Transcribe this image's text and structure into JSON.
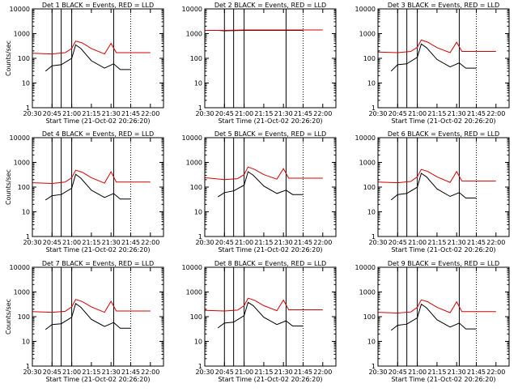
{
  "colors": {
    "events": "#000000",
    "lld": "#d40000"
  },
  "chart_data": [
    {
      "type": "line",
      "title": "Det 1   BLACK = Events, RED = LLD",
      "ylabel": "Counts/sec",
      "xlabel": "Start Time (21-Oct-02 20:26:20)",
      "x_ticks": [
        "20:30",
        "20:45",
        "21:00",
        "21:15",
        "21:30",
        "21:45",
        "22:00"
      ],
      "y_ticks": [
        "1",
        "10",
        "100",
        "1000",
        "10000"
      ],
      "ylim": [
        1,
        10000
      ],
      "y_scale": "log",
      "series": [
        {
          "name": "Events",
          "x": [
            "20:40",
            "20:45",
            "20:52",
            "21:00",
            "21:03",
            "21:07",
            "21:15",
            "21:25",
            "21:32",
            "21:37",
            "21:45"
          ],
          "values": [
            30,
            50,
            55,
            100,
            350,
            250,
            80,
            40,
            60,
            35,
            35
          ]
        },
        {
          "name": "LLD",
          "x": [
            "20:30",
            "20:45",
            "20:55",
            "21:00",
            "21:03",
            "21:08",
            "21:15",
            "21:25",
            "21:30",
            "21:34",
            "21:40",
            "22:00"
          ],
          "values": [
            160,
            150,
            170,
            250,
            500,
            420,
            250,
            150,
            400,
            170,
            170,
            170
          ]
        }
      ]
    },
    {
      "type": "line",
      "title": "Det 2   BLACK = Events, RED = LLD",
      "ylabel": "",
      "xlabel": "Start Time (21-Oct-02 20:26:20)",
      "x_ticks": [
        "20:30",
        "20:45",
        "21:00",
        "21:15",
        "21:30",
        "21:45",
        "22:00"
      ],
      "y_ticks": [
        "1",
        "10",
        "100",
        "1000",
        "10000"
      ],
      "ylim": [
        1,
        10000
      ],
      "y_scale": "log",
      "series": [
        {
          "name": "Events",
          "x": [
            "20:40",
            "20:45",
            "21:00",
            "21:15",
            "21:30",
            "21:45"
          ],
          "values": [
            1350,
            1300,
            1350,
            1350,
            1350,
            1350
          ]
        },
        {
          "name": "LLD",
          "x": [
            "20:30",
            "20:45",
            "21:00",
            "21:15",
            "21:30",
            "21:45",
            "22:00"
          ],
          "values": [
            1350,
            1350,
            1400,
            1400,
            1400,
            1400,
            1400
          ]
        }
      ]
    },
    {
      "type": "line",
      "title": "Det 3   BLACK = Events, RED = LLD",
      "ylabel": "",
      "xlabel": "Start Time (21-Oct-02 20:26:20)",
      "x_ticks": [
        "20:30",
        "20:45",
        "21:00",
        "21:15",
        "21:30",
        "21:45",
        "22:00"
      ],
      "y_ticks": [
        "1",
        "10",
        "100",
        "1000",
        "10000"
      ],
      "ylim": [
        1,
        10000
      ],
      "y_scale": "log",
      "series": [
        {
          "name": "Events",
          "x": [
            "20:40",
            "20:45",
            "20:52",
            "21:00",
            "21:03",
            "21:07",
            "21:15",
            "21:25",
            "21:32",
            "21:37",
            "21:45"
          ],
          "values": [
            30,
            55,
            60,
            110,
            380,
            270,
            90,
            45,
            65,
            40,
            40
          ]
        },
        {
          "name": "LLD",
          "x": [
            "20:30",
            "20:45",
            "20:55",
            "21:00",
            "21:03",
            "21:08",
            "21:15",
            "21:25",
            "21:30",
            "21:34",
            "21:40",
            "22:00"
          ],
          "values": [
            180,
            170,
            190,
            280,
            550,
            450,
            270,
            170,
            450,
            190,
            190,
            190
          ]
        }
      ]
    },
    {
      "type": "line",
      "title": "Det 4   BLACK = Events, RED = LLD",
      "ylabel": "Counts/sec",
      "xlabel": "Start Time (21-Oct-02 20:26:20)",
      "x_ticks": [
        "20:30",
        "20:45",
        "21:00",
        "21:15",
        "21:30",
        "21:45",
        "22:00"
      ],
      "y_ticks": [
        "1",
        "10",
        "100",
        "1000",
        "10000"
      ],
      "ylim": [
        1,
        10000
      ],
      "y_scale": "log",
      "series": [
        {
          "name": "Events",
          "x": [
            "20:40",
            "20:45",
            "20:52",
            "21:00",
            "21:03",
            "21:07",
            "21:15",
            "21:25",
            "21:32",
            "21:37",
            "21:45"
          ],
          "values": [
            30,
            45,
            50,
            90,
            330,
            230,
            75,
            38,
            55,
            33,
            33
          ]
        },
        {
          "name": "LLD",
          "x": [
            "20:30",
            "20:45",
            "20:55",
            "21:00",
            "21:03",
            "21:08",
            "21:15",
            "21:25",
            "21:30",
            "21:34",
            "21:40",
            "22:00"
          ],
          "values": [
            150,
            140,
            160,
            240,
            480,
            400,
            240,
            145,
            420,
            160,
            160,
            160
          ]
        }
      ]
    },
    {
      "type": "line",
      "title": "Det 5   BLACK = Events, RED = LLD",
      "ylabel": "",
      "xlabel": "Start Time (21-Oct-02 20:26:20)",
      "x_ticks": [
        "20:30",
        "20:45",
        "21:00",
        "21:15",
        "21:30",
        "21:45",
        "22:00"
      ],
      "y_ticks": [
        "1",
        "10",
        "100",
        "1000",
        "10000"
      ],
      "ylim": [
        1,
        10000
      ],
      "y_scale": "log",
      "series": [
        {
          "name": "Events",
          "x": [
            "20:40",
            "20:45",
            "20:52",
            "21:00",
            "21:03",
            "21:07",
            "21:15",
            "21:25",
            "21:32",
            "21:37",
            "21:45"
          ],
          "values": [
            40,
            60,
            70,
            120,
            420,
            300,
            110,
            55,
            75,
            50,
            50
          ]
        },
        {
          "name": "LLD",
          "x": [
            "20:30",
            "20:45",
            "20:55",
            "21:00",
            "21:03",
            "21:08",
            "21:15",
            "21:25",
            "21:30",
            "21:34",
            "21:40",
            "22:00"
          ],
          "values": [
            240,
            200,
            220,
            320,
            650,
            520,
            320,
            210,
            560,
            230,
            230,
            230
          ]
        }
      ]
    },
    {
      "type": "line",
      "title": "Det 6   BLACK = Events, RED = LLD",
      "ylabel": "",
      "xlabel": "Start Time (21-Oct-02 20:26:20)",
      "x_ticks": [
        "20:30",
        "20:45",
        "21:00",
        "21:15",
        "21:30",
        "21:45",
        "22:00"
      ],
      "y_ticks": [
        "1",
        "10",
        "100",
        "1000",
        "10000"
      ],
      "ylim": [
        1,
        10000
      ],
      "y_scale": "log",
      "series": [
        {
          "name": "Events",
          "x": [
            "20:40",
            "20:45",
            "20:52",
            "21:00",
            "21:03",
            "21:07",
            "21:15",
            "21:25",
            "21:32",
            "21:37",
            "21:45"
          ],
          "values": [
            30,
            50,
            55,
            100,
            360,
            260,
            85,
            42,
            60,
            36,
            36
          ]
        },
        {
          "name": "LLD",
          "x": [
            "20:30",
            "20:45",
            "20:55",
            "21:00",
            "21:03",
            "21:08",
            "21:15",
            "21:25",
            "21:30",
            "21:34",
            "21:40",
            "22:00"
          ],
          "values": [
            160,
            150,
            170,
            260,
            520,
            430,
            260,
            155,
            430,
            175,
            175,
            175
          ]
        }
      ]
    },
    {
      "type": "line",
      "title": "Det 7   BLACK = Events, RED = LLD",
      "ylabel": "Counts/sec",
      "xlabel": "Start Time (21-Oct-02 20:26:20)",
      "x_ticks": [
        "20:30",
        "20:45",
        "21:00",
        "21:15",
        "21:30",
        "21:45",
        "22:00"
      ],
      "y_ticks": [
        "1",
        "10",
        "100",
        "1000",
        "10000"
      ],
      "ylim": [
        1,
        10000
      ],
      "y_scale": "log",
      "series": [
        {
          "name": "Events",
          "x": [
            "20:40",
            "20:45",
            "20:52",
            "21:00",
            "21:03",
            "21:07",
            "21:15",
            "21:25",
            "21:32",
            "21:37",
            "21:45"
          ],
          "values": [
            30,
            48,
            52,
            95,
            340,
            240,
            78,
            40,
            58,
            34,
            34
          ]
        },
        {
          "name": "LLD",
          "x": [
            "20:30",
            "20:45",
            "20:55",
            "21:00",
            "21:03",
            "21:08",
            "21:15",
            "21:25",
            "21:30",
            "21:34",
            "21:40",
            "22:00"
          ],
          "values": [
            160,
            150,
            165,
            250,
            500,
            410,
            250,
            150,
            420,
            170,
            170,
            170
          ]
        }
      ]
    },
    {
      "type": "line",
      "title": "Det 8   BLACK = Events, RED = LLD",
      "ylabel": "",
      "xlabel": "Start Time (21-Oct-02 20:26:20)",
      "x_ticks": [
        "20:30",
        "20:45",
        "21:00",
        "21:15",
        "21:30",
        "21:45",
        "22:00"
      ],
      "y_ticks": [
        "1",
        "10",
        "100",
        "1000",
        "10000"
      ],
      "ylim": [
        1,
        10000
      ],
      "y_scale": "log",
      "series": [
        {
          "name": "Events",
          "x": [
            "20:40",
            "20:45",
            "20:52",
            "21:00",
            "21:03",
            "21:07",
            "21:15",
            "21:25",
            "21:32",
            "21:37",
            "21:45"
          ],
          "values": [
            35,
            55,
            60,
            110,
            380,
            280,
            95,
            48,
            68,
            42,
            42
          ]
        },
        {
          "name": "LLD",
          "x": [
            "20:30",
            "20:45",
            "20:55",
            "21:00",
            "21:03",
            "21:08",
            "21:15",
            "21:25",
            "21:30",
            "21:34",
            "21:40",
            "22:00"
          ],
          "values": [
            180,
            170,
            185,
            280,
            560,
            460,
            280,
            175,
            470,
            190,
            190,
            190
          ]
        }
      ]
    },
    {
      "type": "line",
      "title": "Det 9   BLACK = Events, RED = LLD",
      "ylabel": "",
      "xlabel": "Start Time (21-Oct-02 20:26:20)",
      "x_ticks": [
        "20:30",
        "20:45",
        "21:00",
        "21:15",
        "21:30",
        "21:45",
        "22:00"
      ],
      "y_ticks": [
        "1",
        "10",
        "100",
        "1000",
        "10000"
      ],
      "ylim": [
        1,
        10000
      ],
      "y_scale": "log",
      "series": [
        {
          "name": "Events",
          "x": [
            "20:40",
            "20:45",
            "20:52",
            "21:00",
            "21:03",
            "21:07",
            "21:15",
            "21:25",
            "21:32",
            "21:37",
            "21:45"
          ],
          "values": [
            28,
            45,
            50,
            90,
            320,
            230,
            75,
            38,
            55,
            32,
            32
          ]
        },
        {
          "name": "LLD",
          "x": [
            "20:30",
            "20:45",
            "20:55",
            "21:00",
            "21:03",
            "21:08",
            "21:15",
            "21:25",
            "21:30",
            "21:34",
            "21:40",
            "22:00"
          ],
          "values": [
            150,
            140,
            155,
            240,
            480,
            400,
            240,
            145,
            400,
            160,
            160,
            160
          ]
        }
      ]
    }
  ],
  "markers": {
    "solid": [
      "20:45",
      "20:52",
      "21:00",
      "21:32"
    ],
    "dotted": [
      "21:45"
    ]
  }
}
